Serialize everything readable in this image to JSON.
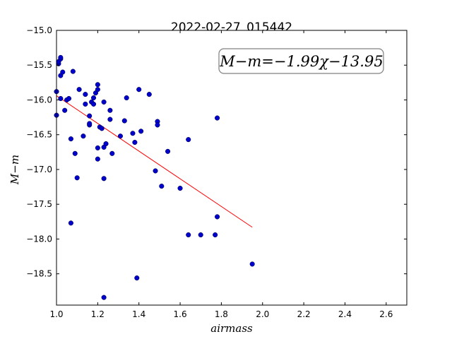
{
  "chart_data": {
    "type": "scatter",
    "title": "2022-02-27_015442",
    "xlabel": "airmass",
    "ylabel": "M−m",
    "xlim": [
      1.0,
      2.7
    ],
    "ylim": [
      -15.0,
      -18.95
    ],
    "y_inverted": true,
    "x_ticks": [
      1.0,
      1.2,
      1.4,
      1.6,
      1.8,
      2.0,
      2.2,
      2.4,
      2.6
    ],
    "x_tick_labels": [
      "1.0",
      "1.2",
      "1.4",
      "1.6",
      "1.8",
      "2.0",
      "2.2",
      "2.4",
      "2.6"
    ],
    "y_ticks": [
      -15.0,
      -15.5,
      -16.0,
      -16.5,
      -17.0,
      -17.5,
      -18.0,
      -18.5
    ],
    "y_tick_labels": [
      "−15.0",
      "−15.5",
      "−16.0",
      "−16.5",
      "−17.0",
      "−17.5",
      "−18.0",
      "−18.5"
    ],
    "grid": false,
    "annotation": "M−m=−1.99χ−13.95",
    "fit": {
      "slope": -1.99,
      "intercept": -13.95,
      "x_range": [
        1.0,
        1.95
      ],
      "color": "#ff0000"
    },
    "marker_color": "#0000cc",
    "points": [
      [
        1.0,
        -15.88
      ],
      [
        1.0,
        -16.22
      ],
      [
        1.01,
        -15.48
      ],
      [
        1.01,
        -15.45
      ],
      [
        1.02,
        -15.41
      ],
      [
        1.02,
        -15.39
      ],
      [
        1.02,
        -15.65
      ],
      [
        1.02,
        -15.98
      ],
      [
        1.03,
        -15.6
      ],
      [
        1.04,
        -16.15
      ],
      [
        1.05,
        -16.0
      ],
      [
        1.06,
        -15.98
      ],
      [
        1.07,
        -16.56
      ],
      [
        1.07,
        -17.77
      ],
      [
        1.08,
        -15.59
      ],
      [
        1.09,
        -16.77
      ],
      [
        1.1,
        -17.12
      ],
      [
        1.11,
        -15.85
      ],
      [
        1.13,
        -16.52
      ],
      [
        1.14,
        -15.92
      ],
      [
        1.14,
        -16.06
      ],
      [
        1.16,
        -16.23
      ],
      [
        1.16,
        -16.36
      ],
      [
        1.16,
        -16.34
      ],
      [
        1.17,
        -16.03
      ],
      [
        1.18,
        -16.06
      ],
      [
        1.18,
        -15.97
      ],
      [
        1.19,
        -15.9
      ],
      [
        1.2,
        -15.85
      ],
      [
        1.2,
        -15.78
      ],
      [
        1.2,
        -16.69
      ],
      [
        1.2,
        -16.85
      ],
      [
        1.21,
        -16.39
      ],
      [
        1.22,
        -16.41
      ],
      [
        1.23,
        -16.68
      ],
      [
        1.23,
        -16.03
      ],
      [
        1.23,
        -17.13
      ],
      [
        1.23,
        -18.84
      ],
      [
        1.24,
        -16.63
      ],
      [
        1.26,
        -16.15
      ],
      [
        1.26,
        -16.28
      ],
      [
        1.27,
        -16.77
      ],
      [
        1.31,
        -16.52
      ],
      [
        1.33,
        -16.3
      ],
      [
        1.34,
        -15.97
      ],
      [
        1.37,
        -16.48
      ],
      [
        1.38,
        -16.61
      ],
      [
        1.39,
        -18.56
      ],
      [
        1.4,
        -15.85
      ],
      [
        1.41,
        -16.45
      ],
      [
        1.45,
        -15.92
      ],
      [
        1.48,
        -17.02
      ],
      [
        1.49,
        -16.31
      ],
      [
        1.49,
        -16.36
      ],
      [
        1.51,
        -17.24
      ],
      [
        1.54,
        -16.74
      ],
      [
        1.6,
        -17.27
      ],
      [
        1.64,
        -16.57
      ],
      [
        1.64,
        -17.94
      ],
      [
        1.7,
        -17.94
      ],
      [
        1.77,
        -17.94
      ],
      [
        1.78,
        -16.26
      ],
      [
        1.78,
        -17.68
      ],
      [
        1.95,
        -18.36
      ]
    ]
  }
}
